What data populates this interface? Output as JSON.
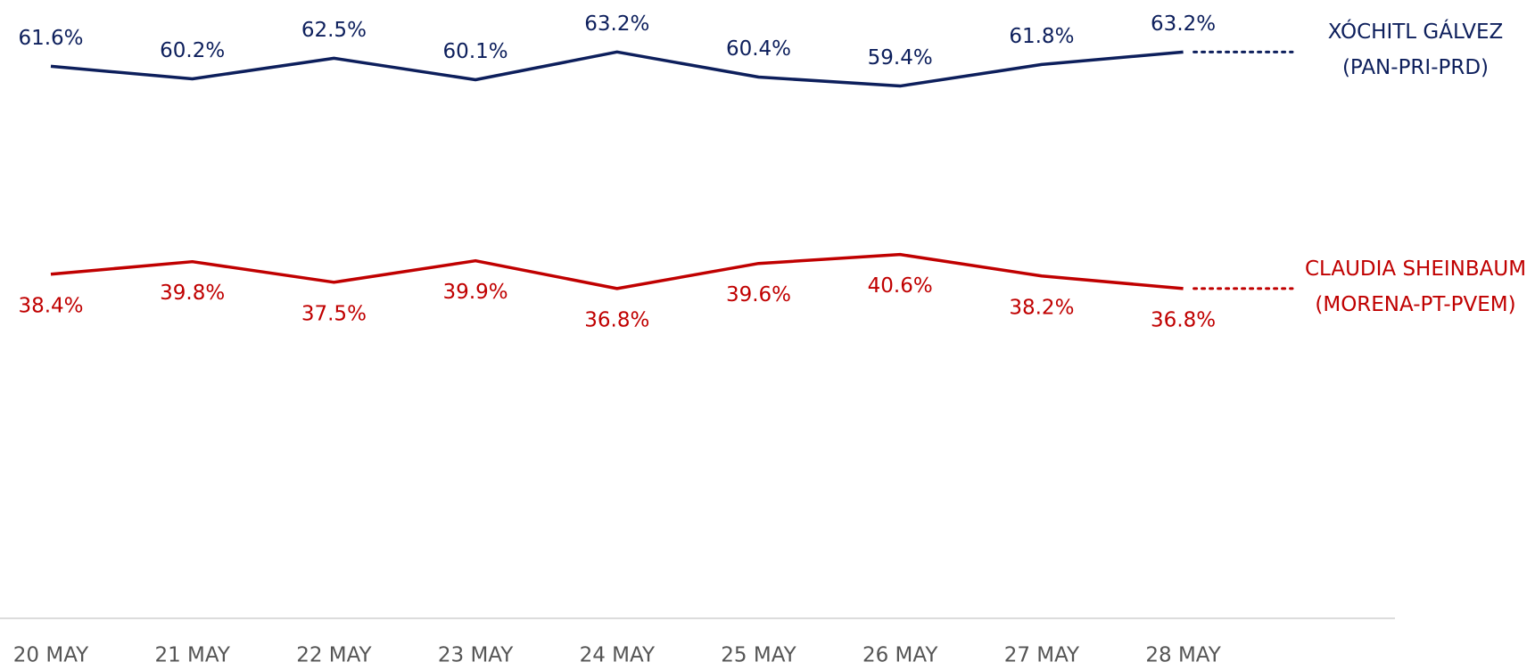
{
  "chart_data": {
    "type": "line",
    "categories": [
      "20 MAY",
      "21 MAY",
      "22 MAY",
      "23 MAY",
      "24 MAY",
      "25 MAY",
      "26 MAY",
      "27 MAY",
      "28 MAY"
    ],
    "ylim": [
      0,
      69
    ],
    "series": [
      {
        "name": "XÓCHITL GÁLVEZ (PAN-PRI-PRD)",
        "color": "#0d1f5c",
        "values": [
          61.6,
          60.2,
          62.5,
          60.1,
          63.2,
          60.4,
          59.4,
          61.8,
          63.2
        ],
        "value_labels": [
          "61.6%",
          "60.2%",
          "62.5%",
          "60.1%",
          "63.2%",
          "60.4%",
          "59.4%",
          "61.8%",
          "63.2%"
        ]
      },
      {
        "name": "CLAUDIA SHEINBAUM (MORENA-PT-PVEM)",
        "color": "#c00000",
        "values": [
          38.4,
          39.8,
          37.5,
          39.9,
          36.8,
          39.6,
          40.6,
          38.2,
          36.8
        ],
        "value_labels": [
          "38.4%",
          "39.8%",
          "37.5%",
          "39.9%",
          "36.8%",
          "39.6%",
          "40.6%",
          "38.2%",
          "36.8%"
        ]
      }
    ]
  }
}
